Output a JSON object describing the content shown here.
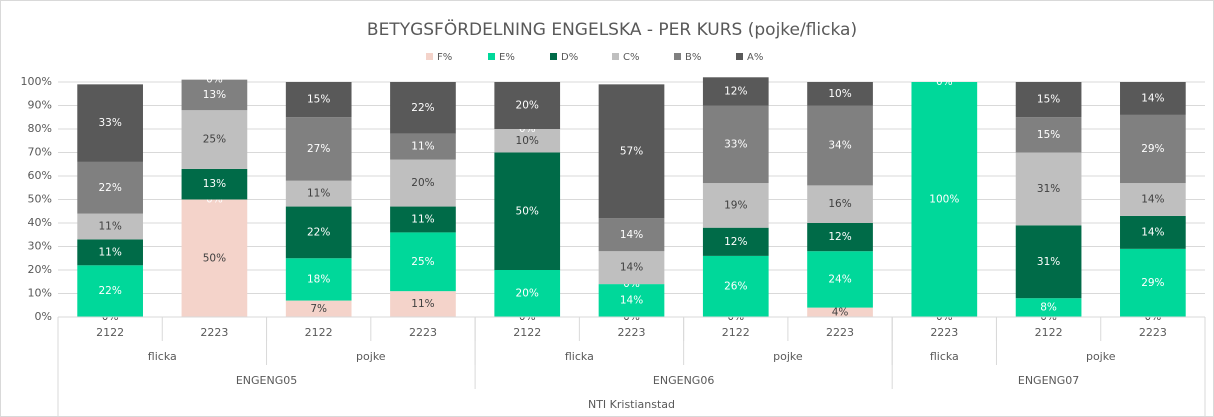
{
  "chart_data": {
    "type": "stacked_bar_100",
    "title": "BETYGSFÖRDELNING ENGELSKA - PER KURS (pojke/flicka)",
    "categories": [
      "2122",
      "2223",
      "2122",
      "2223",
      "2122",
      "2223",
      "2122",
      "2223",
      "2223",
      "2122",
      "2223"
    ],
    "category_groups": [
      [
        {
          "label": "flicka",
          "span": 2
        },
        {
          "label": "pojke",
          "span": 2
        },
        {
          "label": "flicka",
          "span": 2
        },
        {
          "label": "pojke",
          "span": 2
        },
        {
          "label": "flicka",
          "span": 1
        },
        {
          "label": "pojke",
          "span": 2
        }
      ],
      [
        {
          "label": "ENGENG05",
          "span": 4
        },
        {
          "label": "ENGENG06",
          "span": 4
        },
        {
          "label": "ENGENG07",
          "span": 3
        }
      ],
      [
        {
          "label": "NTI Kristianstad",
          "span": 11
        }
      ]
    ],
    "series": [
      {
        "name": "F%",
        "color": "#f4d3ca",
        "label_color": "#404040",
        "values": [
          0,
          50,
          7,
          11,
          0,
          0,
          0,
          4,
          0,
          0,
          0
        ],
        "value_labels": [
          "0%",
          "50%",
          "7%",
          "11%",
          "0%",
          "0%",
          "0%",
          "4%",
          "0%",
          "0%",
          "0%"
        ]
      },
      {
        "name": "E%",
        "color": "#00d89a",
        "label_color": "#ffffff",
        "values": [
          22,
          0,
          18,
          25,
          20,
          14,
          26,
          24,
          100,
          8,
          29
        ],
        "value_labels": [
          "22%",
          "0%",
          "18%",
          "25%",
          "20%",
          "14%",
          "26%",
          "24%",
          "100%",
          "8%",
          "29%"
        ]
      },
      {
        "name": "D%",
        "color": "#006b48",
        "label_color": "#ffffff",
        "values": [
          11,
          13,
          22,
          11,
          50,
          0,
          12,
          12,
          null,
          31,
          14
        ],
        "value_labels": [
          "11%",
          "13%",
          "22%",
          "11%",
          "50%",
          "0%",
          "12%",
          "12%",
          null,
          "31%",
          "14%"
        ]
      },
      {
        "name": "C%",
        "color": "#bfbfbf",
        "label_color": "#404040",
        "values": [
          11,
          25,
          11,
          20,
          10,
          14,
          19,
          16,
          null,
          31,
          14
        ],
        "value_labels": [
          "11%",
          "25%",
          "11%",
          "20%",
          "10%",
          "14%",
          "19%",
          "16%",
          null,
          "31%",
          "14%"
        ]
      },
      {
        "name": "B%",
        "color": "#808080",
        "label_color": "#ffffff",
        "values": [
          22,
          13,
          27,
          11,
          0,
          14,
          33,
          34,
          null,
          15,
          29
        ],
        "value_labels": [
          "22%",
          "13%",
          "27%",
          "11%",
          "0%",
          "14%",
          "33%",
          "34%",
          null,
          "15%",
          "29%"
        ]
      },
      {
        "name": "A%",
        "color": "#595959",
        "label_color": "#ffffff",
        "values": [
          33,
          0,
          15,
          22,
          20,
          57,
          12,
          10,
          0,
          15,
          14
        ],
        "value_labels": [
          "33%",
          "0%",
          "15%",
          "22%",
          "20%",
          "57%",
          "12%",
          "10%",
          "0%",
          "15%",
          "14%"
        ]
      }
    ],
    "ylim": [
      0,
      100
    ],
    "yticks": [
      {
        "value": 0,
        "label": "0%"
      },
      {
        "value": 10,
        "label": "10%"
      },
      {
        "value": 20,
        "label": "20%"
      },
      {
        "value": 30,
        "label": "30%"
      },
      {
        "value": 40,
        "label": "40%"
      },
      {
        "value": 50,
        "label": "50%"
      },
      {
        "value": 60,
        "label": "60%"
      },
      {
        "value": 70,
        "label": "70%"
      },
      {
        "value": 80,
        "label": "80%"
      },
      {
        "value": 90,
        "label": "90%"
      },
      {
        "value": 100,
        "label": "100%"
      }
    ],
    "grid": true,
    "legend": "top"
  }
}
